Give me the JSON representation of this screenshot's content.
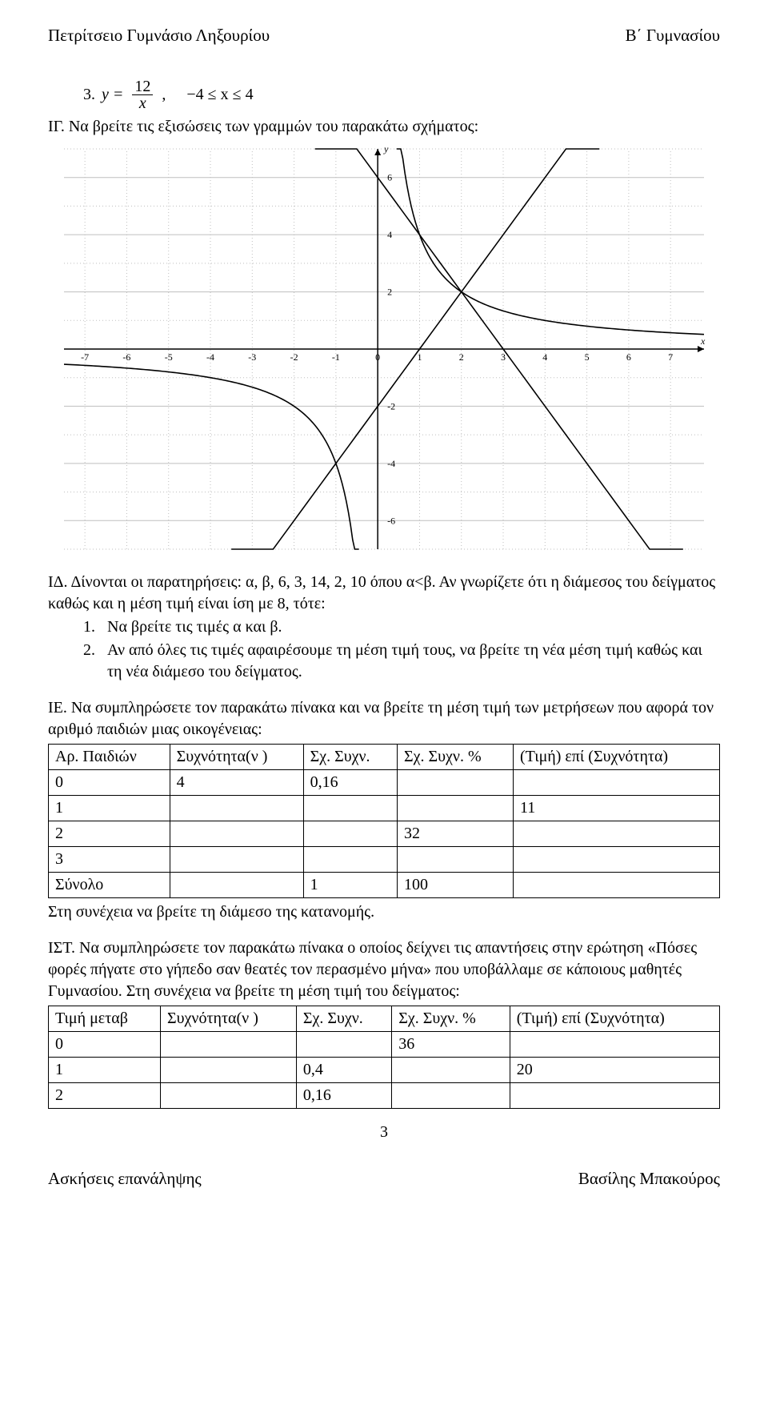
{
  "header": {
    "left": "Πετρίτσειο Γυμνάσιο Ληξουρίου",
    "right": "Β΄ Γυμνασίου"
  },
  "p3": {
    "lead": "3.",
    "y_eq": "y =",
    "frac_num": "12",
    "frac_den": "x",
    "comma": ",",
    "range": "−4 ≤ x ≤ 4"
  },
  "ig": {
    "label": "ΙΓ.",
    "text": "Να βρείτε τις εξισώσεις των γραμμών του παρακάτω σχήματος:"
  },
  "graph": {
    "x_ticks": [
      -7,
      -6,
      -5,
      -4,
      -3,
      -2,
      -1,
      0,
      1,
      2,
      3,
      4,
      5,
      6,
      7
    ],
    "y_ticks": [
      -6,
      -4,
      -2,
      0,
      2,
      4,
      6
    ],
    "x_label": "x",
    "y_label": "y",
    "axis_color": "#000000",
    "grid_color": "#bfbfbf",
    "dotted_color": "#bfbfbf",
    "curve_color": "#000000",
    "tick_font_size": 12,
    "axis_label_font_size": 12,
    "hyperbola_k": 4,
    "line1": {
      "m": 2,
      "b": -2
    },
    "line2": {
      "m": -2,
      "b": 6
    },
    "xlim": [
      -7.5,
      7.8
    ],
    "ylim": [
      -7,
      7
    ]
  },
  "id": {
    "label": "ΙΔ.",
    "intro": "Δίνονται οι παρατηρήσεις: α, β, 6, 3, 14, 2, 10 όπου α<β. Αν γνωρίζετε ότι η διάμεσος του δείγματος καθώς και η μέση τιμή είναι ίση με 8, τότε:",
    "item1_n": "1.",
    "item1": "Να βρείτε τις τιμές α και β.",
    "item2_n": "2.",
    "item2": "Αν από όλες τις τιμές αφαιρέσουμε τη μέση τιμή τους, να βρείτε τη νέα μέση τιμή καθώς και τη νέα διάμεσο του δείγματος."
  },
  "ie": {
    "label": "ΙΕ.",
    "intro": "Να συμπληρώσετε τον παρακάτω πίνακα και να βρείτε τη μέση τιμή των μετρήσεων που αφορά τον αριθμό παιδιών μιας οικογένειας:",
    "headers": [
      "Αρ. Παιδιών",
      "Συχνότητα(ν )",
      "Σχ. Συχν.",
      "Σχ. Συχν. %",
      "(Τιμή) επί (Συχνότητα)"
    ],
    "rows": [
      [
        "0",
        "4",
        "0,16",
        "",
        ""
      ],
      [
        "1",
        "",
        "",
        "",
        "11"
      ],
      [
        "2",
        "",
        "",
        "32",
        ""
      ],
      [
        "3",
        "",
        "",
        "",
        ""
      ],
      [
        "Σύνολο",
        "",
        "1",
        "100",
        ""
      ]
    ],
    "after": "Στη συνέχεια να βρείτε τη διάμεσο της κατανομής."
  },
  "ist": {
    "label": "ΙΣΤ.",
    "intro": "Να συμπληρώσετε τον παρακάτω πίνακα ο οποίος δείχνει τις απαντήσεις στην ερώτηση «Πόσες φορές πήγατε στο γήπεδο σαν θεατές τον περασμένο μήνα» που υποβάλλαμε σε κάποιους μαθητές Γυμνασίου. Στη συνέχεια να βρείτε τη μέση τιμή του δείγματος:",
    "headers": [
      "Τιμή μεταβ",
      "Συχνότητα(ν )",
      "Σχ. Συχν.",
      "Σχ. Συχν. %",
      "(Τιμή) επί (Συχνότητα)"
    ],
    "rows": [
      [
        "0",
        "",
        "",
        "36",
        ""
      ],
      [
        "1",
        "",
        "0,4",
        "",
        "20"
      ],
      [
        "2",
        "",
        "0,16",
        "",
        ""
      ]
    ]
  },
  "page_number": "3",
  "footer": {
    "left": "Ασκήσεις επανάληψης",
    "right": "Βασίλης Μπακούρος"
  }
}
